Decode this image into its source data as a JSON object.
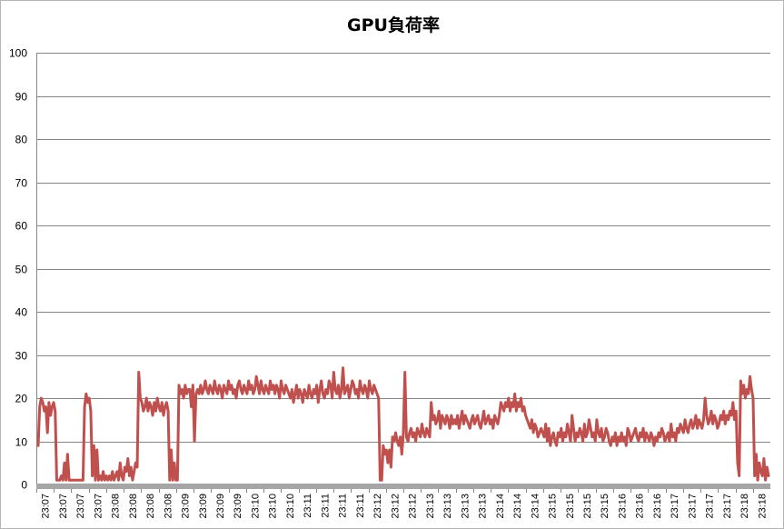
{
  "chart_data": {
    "type": "line",
    "title": "GPU負荷率",
    "xlabel": "",
    "ylabel": "",
    "ylim": [
      0,
      100
    ],
    "y_ticks": [
      0,
      10,
      20,
      30,
      40,
      50,
      60,
      70,
      80,
      90,
      100
    ],
    "grid": "horizontal",
    "legend": "none",
    "line_color": "#C0504D",
    "x_tick_labels": [
      "23:07",
      "23:07",
      "23:07",
      "23:07",
      "23:08",
      "23:08",
      "23:08",
      "23:08",
      "23:09",
      "23:09",
      "23:09",
      "23:09",
      "23:10",
      "23:10",
      "23:10",
      "23:11",
      "23:11",
      "23:11",
      "23:11",
      "23:12",
      "23:12",
      "23:12",
      "23:13",
      "23:13",
      "23:13",
      "23:13",
      "23:14",
      "23:14",
      "23:14",
      "23:15",
      "23:15",
      "23:15",
      "23:15",
      "23:16",
      "23:16",
      "23:16",
      "23:17",
      "23:17",
      "23:17",
      "23:17",
      "23:18",
      "23:18"
    ],
    "series": [
      {
        "values": [
          9,
          18,
          20,
          19,
          17,
          18,
          12,
          19,
          16,
          18,
          19,
          17,
          1,
          1,
          1,
          2,
          1,
          5,
          1,
          7,
          1,
          1,
          1,
          1,
          1,
          1,
          1,
          1,
          1,
          1,
          18,
          21,
          19,
          20,
          17,
          2,
          9,
          1,
          8,
          1,
          2,
          1,
          3,
          1,
          2,
          1,
          2,
          1,
          3,
          1,
          2,
          3,
          1,
          5,
          2,
          1,
          4,
          3,
          6,
          2,
          4,
          1,
          3,
          5,
          4,
          26,
          20,
          19,
          17,
          18,
          20,
          17,
          19,
          18,
          16,
          19,
          17,
          20,
          18,
          17,
          19,
          16,
          18,
          19,
          17,
          1,
          8,
          1,
          5,
          1,
          1,
          23,
          21,
          22,
          20,
          23,
          21,
          22,
          22,
          18,
          23,
          10,
          21,
          22,
          21,
          23,
          21,
          22,
          24,
          22,
          21,
          23,
          22,
          21,
          24,
          22,
          21,
          23,
          22,
          20,
          23,
          22,
          21,
          24,
          22,
          23,
          21,
          22,
          20,
          23,
          24,
          22,
          21,
          23,
          22,
          21,
          24,
          22,
          23,
          21,
          22,
          25,
          23,
          21,
          24,
          22,
          21,
          23,
          22,
          21,
          24,
          22,
          23,
          21,
          23,
          22,
          20,
          24,
          22,
          21,
          23,
          22,
          21,
          20,
          22,
          19,
          21,
          23,
          20,
          22,
          21,
          19,
          22,
          21,
          20,
          23,
          21,
          20,
          22,
          21,
          23,
          19,
          22,
          24,
          21,
          20,
          22,
          21,
          24,
          23,
          20,
          26,
          22,
          21,
          23,
          20,
          22,
          27,
          21,
          22,
          23,
          20,
          22,
          24,
          23,
          21,
          22,
          20,
          24,
          22,
          21,
          23,
          22,
          20,
          24,
          22,
          21,
          23,
          22,
          21,
          20,
          1,
          1,
          9,
          7,
          8,
          5,
          8,
          4,
          11,
          10,
          12,
          10,
          9,
          11,
          7,
          12,
          26,
          11,
          10,
          12,
          13,
          11,
          12,
          10,
          13,
          12,
          11,
          14,
          12,
          11,
          13,
          12,
          11,
          19,
          15,
          16,
          14,
          15,
          17,
          13,
          16,
          15,
          14,
          16,
          15,
          13,
          16,
          14,
          15,
          14,
          16,
          13,
          15,
          17,
          14,
          16,
          15,
          14,
          13,
          15,
          16,
          14,
          15,
          16,
          14,
          13,
          15,
          17,
          14,
          15,
          16,
          14,
          15,
          13,
          16,
          15,
          14,
          16,
          19,
          18,
          17,
          19,
          18,
          20,
          17,
          19,
          18,
          21,
          17,
          19,
          18,
          20,
          17,
          18,
          16,
          15,
          14,
          13,
          15,
          12,
          14,
          13,
          11,
          12,
          13,
          12,
          11,
          14,
          10,
          13,
          9,
          11,
          12,
          10,
          9,
          12,
          11,
          13,
          10,
          12,
          11,
          14,
          12,
          10,
          16,
          13,
          10,
          12,
          11,
          13,
          12,
          10,
          14,
          11,
          12,
          15,
          13,
          11,
          12,
          10,
          15,
          12,
          11,
          13,
          10,
          11,
          13,
          12,
          10,
          9,
          11,
          10,
          12,
          9,
          11,
          10,
          12,
          10,
          11,
          9,
          13,
          12,
          10,
          11,
          12,
          13,
          11,
          10,
          12,
          11,
          13,
          10,
          12,
          11,
          10,
          12,
          11,
          9,
          11,
          10,
          12,
          11,
          13,
          12,
          10,
          11,
          12,
          10,
          14,
          11,
          12,
          10,
          13,
          12,
          14,
          13,
          12,
          15,
          13,
          12,
          14,
          15,
          13,
          14,
          16,
          13,
          15,
          14,
          13,
          15,
          20,
          16,
          14,
          15,
          17,
          14,
          16,
          15,
          13,
          14,
          16,
          15,
          17,
          14,
          16,
          15,
          17,
          16,
          19,
          15,
          17,
          5,
          2,
          24,
          21,
          23,
          20,
          22,
          21,
          25,
          22,
          20,
          2,
          7,
          1,
          5,
          3,
          2,
          6,
          1,
          4,
          2
        ]
      }
    ]
  }
}
